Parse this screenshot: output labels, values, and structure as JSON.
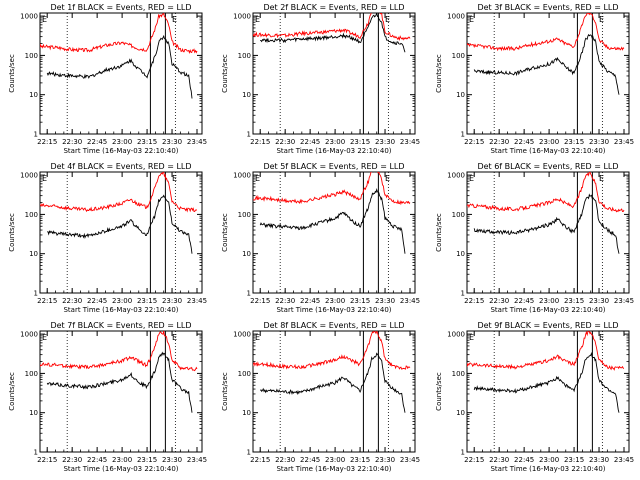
{
  "chart_data": [
    {
      "type": "line",
      "title": "Det 1f BLACK = Events, RED = LLD",
      "xlabel": "Start Time (16-May-03 22:10:40)",
      "ylabel": "Counts/sec",
      "xticks": [
        "22:15",
        "22:30",
        "22:45",
        "23:00",
        "23:15",
        "23:30",
        "23:45"
      ],
      "yticks": [
        "1",
        "10",
        "100",
        "1000"
      ],
      "ylim": [
        1,
        1200
      ],
      "log_y": true,
      "series": [
        {
          "color": "#ff0000",
          "x": [
            "22:10",
            "22:20",
            "22:30",
            "22:40",
            "22:50",
            "23:00",
            "23:05",
            "23:10",
            "23:15",
            "23:20",
            "23:22",
            "23:25",
            "23:28",
            "23:30",
            "23:35",
            "23:40",
            "23:45"
          ],
          "values": [
            170,
            160,
            140,
            135,
            180,
            210,
            180,
            150,
            140,
            500,
            1000,
            1100,
            600,
            220,
            140,
            130,
            130
          ]
        },
        {
          "color": "#000000",
          "x": [
            "22:15",
            "22:20",
            "22:30",
            "22:40",
            "22:50",
            "23:00",
            "23:05",
            "23:10",
            "23:15",
            "23:20",
            "23:22",
            "23:25",
            "23:28",
            "23:30",
            "23:35",
            "23:40",
            "23:42"
          ],
          "values": [
            35,
            33,
            30,
            28,
            42,
            55,
            75,
            45,
            30,
            100,
            220,
            300,
            200,
            60,
            38,
            30,
            8
          ]
        }
      ],
      "markers": [
        "E",
        "E"
      ]
    },
    {
      "type": "line",
      "title": "Det 2f BLACK = Events, RED = LLD",
      "xlabel": "Start Time (16-May-03 22:10:40)",
      "ylabel": "Counts/sec",
      "xticks": [
        "22:15",
        "22:30",
        "22:45",
        "23:00",
        "23:15",
        "23:30",
        "23:45"
      ],
      "yticks": [
        "1",
        "10",
        "100",
        "1000"
      ],
      "ylim": [
        1,
        1200
      ],
      "log_y": true,
      "series": [
        {
          "color": "#ff0000",
          "x": [
            "22:10",
            "22:20",
            "22:30",
            "22:40",
            "22:50",
            "23:00",
            "23:05",
            "23:10",
            "23:15",
            "23:20",
            "23:22",
            "23:25",
            "23:28",
            "23:30",
            "23:35",
            "23:40",
            "23:45"
          ],
          "values": [
            340,
            330,
            320,
            360,
            380,
            420,
            440,
            360,
            300,
            700,
            1500,
            1800,
            1100,
            400,
            300,
            270,
            270
          ]
        },
        {
          "color": "#000000",
          "x": [
            "22:15",
            "22:20",
            "22:30",
            "22:40",
            "22:50",
            "23:00",
            "23:05",
            "23:10",
            "23:15",
            "23:20",
            "23:22",
            "23:25",
            "23:28",
            "23:30",
            "23:35",
            "23:40",
            "23:42"
          ],
          "values": [
            250,
            245,
            240,
            260,
            270,
            300,
            320,
            280,
            220,
            500,
            900,
            1100,
            700,
            280,
            210,
            200,
            120
          ]
        }
      ],
      "markers": [
        "E",
        "E"
      ]
    },
    {
      "type": "line",
      "title": "Det 3f BLACK = Events, RED = LLD",
      "xlabel": "Start Time (16-May-03 22:10:40)",
      "ylabel": "Counts/sec",
      "xticks": [
        "22:15",
        "22:30",
        "22:45",
        "23:00",
        "23:15",
        "23:30",
        "23:45"
      ],
      "yticks": [
        "1",
        "10",
        "100",
        "1000"
      ],
      "ylim": [
        1,
        1200
      ],
      "log_y": true,
      "series": [
        {
          "color": "#ff0000",
          "x": [
            "22:10",
            "22:20",
            "22:30",
            "22:40",
            "22:50",
            "23:00",
            "23:05",
            "23:10",
            "23:15",
            "23:20",
            "23:22",
            "23:25",
            "23:28",
            "23:30",
            "23:35",
            "23:40",
            "23:45"
          ],
          "values": [
            180,
            170,
            150,
            150,
            190,
            230,
            260,
            200,
            170,
            600,
            1100,
            1200,
            700,
            250,
            160,
            150,
            150
          ]
        },
        {
          "color": "#000000",
          "x": [
            "22:15",
            "22:20",
            "22:30",
            "22:40",
            "22:50",
            "23:00",
            "23:05",
            "23:10",
            "23:15",
            "23:20",
            "23:22",
            "23:25",
            "23:28",
            "23:30",
            "23:35",
            "23:40",
            "23:42"
          ],
          "values": [
            40,
            38,
            36,
            35,
            48,
            60,
            80,
            50,
            35,
            120,
            260,
            350,
            220,
            70,
            40,
            30,
            10
          ]
        }
      ],
      "markers": [
        "E",
        "E"
      ]
    },
    {
      "type": "line",
      "title": "Det 4f BLACK = Events, RED = LLD",
      "xlabel": "Start Time (16-May-03 22:10:40)",
      "ylabel": "Counts/sec",
      "xticks": [
        "22:15",
        "22:30",
        "22:45",
        "23:00",
        "23:15",
        "23:30",
        "23:45"
      ],
      "yticks": [
        "1",
        "10",
        "100",
        "1000"
      ],
      "ylim": [
        1,
        1200
      ],
      "log_y": true,
      "series": [
        {
          "color": "#ff0000",
          "x": [
            "22:10",
            "22:20",
            "22:30",
            "22:40",
            "22:50",
            "23:00",
            "23:05",
            "23:10",
            "23:15",
            "23:20",
            "23:22",
            "23:25",
            "23:28",
            "23:30",
            "23:35",
            "23:40",
            "23:45"
          ],
          "values": [
            170,
            160,
            140,
            130,
            150,
            190,
            240,
            180,
            150,
            500,
            1000,
            1100,
            600,
            220,
            140,
            130,
            130
          ]
        },
        {
          "color": "#000000",
          "x": [
            "22:15",
            "22:20",
            "22:30",
            "22:40",
            "22:50",
            "23:00",
            "23:05",
            "23:10",
            "23:15",
            "23:20",
            "23:22",
            "23:25",
            "23:28",
            "23:30",
            "23:35",
            "23:40",
            "23:42"
          ],
          "values": [
            35,
            33,
            30,
            28,
            38,
            50,
            70,
            42,
            30,
            100,
            220,
            300,
            200,
            60,
            38,
            30,
            10
          ]
        }
      ],
      "markers": [
        "E",
        "E"
      ]
    },
    {
      "type": "line",
      "title": "Det 5f BLACK = Events, RED = LLD",
      "xlabel": "Start Time (16-May-03 22:10:40)",
      "ylabel": "Counts/sec",
      "xticks": [
        "22:15",
        "22:30",
        "22:45",
        "23:00",
        "23:15",
        "23:30",
        "23:45"
      ],
      "yticks": [
        "1",
        "10",
        "100",
        "1000"
      ],
      "ylim": [
        1,
        1200
      ],
      "log_y": true,
      "series": [
        {
          "color": "#ff0000",
          "x": [
            "22:10",
            "22:20",
            "22:30",
            "22:40",
            "22:50",
            "23:00",
            "23:05",
            "23:10",
            "23:15",
            "23:20",
            "23:22",
            "23:25",
            "23:28",
            "23:30",
            "23:35",
            "23:40",
            "23:45"
          ],
          "values": [
            260,
            250,
            220,
            210,
            260,
            320,
            380,
            300,
            250,
            700,
            1300,
            1500,
            800,
            300,
            220,
            200,
            200
          ]
        },
        {
          "color": "#000000",
          "x": [
            "22:15",
            "22:20",
            "22:30",
            "22:40",
            "22:50",
            "23:00",
            "23:05",
            "23:10",
            "23:15",
            "23:20",
            "23:22",
            "23:25",
            "23:28",
            "23:30",
            "23:35",
            "23:40",
            "23:42"
          ],
          "values": [
            55,
            52,
            48,
            45,
            60,
            80,
            110,
            70,
            50,
            150,
            300,
            400,
            250,
            80,
            50,
            40,
            10
          ]
        }
      ],
      "markers": [
        "E",
        "E"
      ]
    },
    {
      "type": "line",
      "title": "Det 6f BLACK = Events, RED = LLD",
      "xlabel": "Start Time (16-May-03 22:10:40)",
      "ylabel": "Counts/sec",
      "xticks": [
        "22:15",
        "22:30",
        "22:45",
        "23:00",
        "23:15",
        "23:30",
        "23:45"
      ],
      "yticks": [
        "1",
        "10",
        "100",
        "1000"
      ],
      "ylim": [
        1,
        1200
      ],
      "log_y": true,
      "series": [
        {
          "color": "#ff0000",
          "x": [
            "22:10",
            "22:20",
            "22:30",
            "22:40",
            "22:50",
            "23:00",
            "23:05",
            "23:10",
            "23:15",
            "23:20",
            "23:22",
            "23:25",
            "23:28",
            "23:30",
            "23:35",
            "23:40",
            "23:45"
          ],
          "values": [
            170,
            160,
            140,
            135,
            160,
            200,
            250,
            190,
            160,
            500,
            1000,
            1100,
            600,
            220,
            140,
            130,
            130
          ]
        },
        {
          "color": "#000000",
          "x": [
            "22:15",
            "22:20",
            "22:30",
            "22:40",
            "22:50",
            "23:00",
            "23:05",
            "23:10",
            "23:15",
            "23:20",
            "23:22",
            "23:25",
            "23:28",
            "23:30",
            "23:35",
            "23:40",
            "23:42"
          ],
          "values": [
            40,
            38,
            35,
            34,
            42,
            55,
            75,
            48,
            35,
            110,
            240,
            320,
            210,
            65,
            40,
            30,
            10
          ]
        }
      ],
      "markers": [
        "E",
        "E"
      ]
    },
    {
      "type": "line",
      "title": "Det 7f BLACK = Events, RED = LLD",
      "xlabel": "Start Time (16-May-03 22:10:40)",
      "ylabel": "Counts/sec",
      "xticks": [
        "22:15",
        "22:30",
        "22:45",
        "23:00",
        "23:15",
        "23:30",
        "23:45"
      ],
      "yticks": [
        "1",
        "10",
        "100",
        "1000"
      ],
      "ylim": [
        1,
        1200
      ],
      "log_y": true,
      "series": [
        {
          "color": "#ff0000",
          "x": [
            "22:10",
            "22:20",
            "22:30",
            "22:40",
            "22:50",
            "23:00",
            "23:05",
            "23:10",
            "23:15",
            "23:20",
            "23:22",
            "23:25",
            "23:28",
            "23:30",
            "23:35",
            "23:40",
            "23:45"
          ],
          "values": [
            170,
            165,
            150,
            145,
            170,
            210,
            260,
            200,
            160,
            500,
            1000,
            1100,
            600,
            220,
            140,
            130,
            130
          ]
        },
        {
          "color": "#000000",
          "x": [
            "22:15",
            "22:20",
            "22:30",
            "22:40",
            "22:50",
            "23:00",
            "23:05",
            "23:10",
            "23:15",
            "23:20",
            "23:22",
            "23:25",
            "23:28",
            "23:30",
            "23:35",
            "23:40",
            "23:42"
          ],
          "values": [
            55,
            52,
            48,
            45,
            55,
            70,
            95,
            60,
            45,
            120,
            250,
            330,
            220,
            70,
            42,
            32,
            10
          ]
        }
      ],
      "markers": [
        "E",
        "E"
      ]
    },
    {
      "type": "line",
      "title": "Det 8f BLACK = Events, RED = LLD",
      "xlabel": "Start Time (16-May-03 22:10:40)",
      "ylabel": "Counts/sec",
      "xticks": [
        "22:15",
        "22:30",
        "22:45",
        "23:00",
        "23:15",
        "23:30",
        "23:45"
      ],
      "yticks": [
        "1",
        "10",
        "100",
        "1000"
      ],
      "ylim": [
        1,
        1200
      ],
      "log_y": true,
      "series": [
        {
          "color": "#ff0000",
          "x": [
            "22:10",
            "22:20",
            "22:30",
            "22:40",
            "22:50",
            "23:00",
            "23:05",
            "23:10",
            "23:15",
            "23:20",
            "23:22",
            "23:25",
            "23:28",
            "23:30",
            "23:35",
            "23:40",
            "23:45"
          ],
          "values": [
            170,
            165,
            150,
            145,
            175,
            220,
            270,
            210,
            170,
            520,
            1050,
            1150,
            620,
            230,
            150,
            140,
            140
          ]
        },
        {
          "color": "#000000",
          "x": [
            "22:15",
            "22:20",
            "22:30",
            "22:40",
            "22:50",
            "23:00",
            "23:05",
            "23:10",
            "23:15",
            "23:20",
            "23:22",
            "23:25",
            "23:28",
            "23:30",
            "23:35",
            "23:40",
            "23:42"
          ],
          "values": [
            38,
            36,
            34,
            33,
            45,
            58,
            80,
            50,
            36,
            110,
            230,
            310,
            200,
            65,
            40,
            30,
            10
          ]
        }
      ],
      "markers": [
        "E",
        "E"
      ]
    },
    {
      "type": "line",
      "title": "Det 9f BLACK = Events, RED = LLD",
      "xlabel": "Start Time (16-May-03 22:10:40)",
      "ylabel": "Counts/sec",
      "xticks": [
        "22:15",
        "22:30",
        "22:45",
        "23:00",
        "23:15",
        "23:30",
        "23:45"
      ],
      "yticks": [
        "1",
        "10",
        "100",
        "1000"
      ],
      "ylim": [
        1,
        1200
      ],
      "log_y": true,
      "series": [
        {
          "color": "#ff0000",
          "x": [
            "22:10",
            "22:20",
            "22:30",
            "22:40",
            "22:50",
            "23:00",
            "23:05",
            "23:10",
            "23:15",
            "23:20",
            "23:22",
            "23:25",
            "23:28",
            "23:30",
            "23:35",
            "23:40",
            "23:45"
          ],
          "values": [
            170,
            165,
            150,
            145,
            170,
            215,
            265,
            205,
            165,
            510,
            1020,
            1120,
            610,
            225,
            145,
            135,
            135
          ]
        },
        {
          "color": "#000000",
          "x": [
            "22:15",
            "22:20",
            "22:30",
            "22:40",
            "22:50",
            "23:00",
            "23:05",
            "23:10",
            "23:15",
            "23:20",
            "23:22",
            "23:25",
            "23:28",
            "23:30",
            "23:35",
            "23:40",
            "23:42"
          ],
          "values": [
            42,
            40,
            37,
            35,
            45,
            58,
            80,
            50,
            36,
            110,
            240,
            320,
            210,
            65,
            40,
            30,
            10
          ]
        }
      ],
      "markers": [
        "E",
        "E"
      ]
    }
  ]
}
